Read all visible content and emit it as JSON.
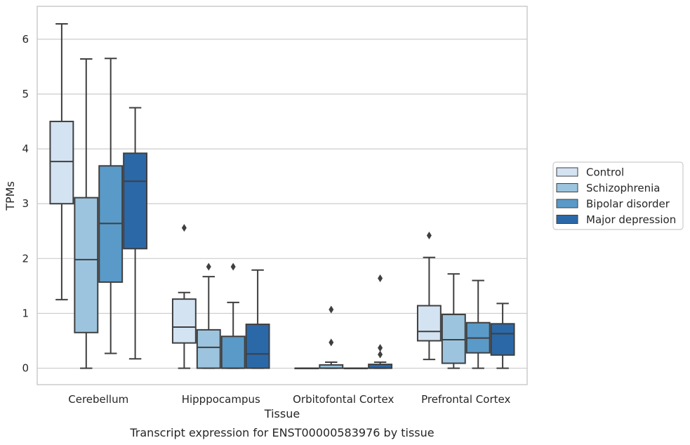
{
  "chart_data": {
    "type": "box",
    "xlabel": "Tissue",
    "ylabel": "TPMs",
    "caption": "Transcript expression for ENST00000583976 by tissue",
    "ylim": [
      -0.3,
      6.6
    ],
    "yticks": [
      0,
      1,
      2,
      3,
      4,
      5,
      6
    ],
    "grid": true,
    "legend_position": "right",
    "categories": [
      "Cerebellum",
      "Hipppocampus",
      "Orbitofontal Cortex",
      "Prefrontal Cortex"
    ],
    "series": [
      {
        "name": "Control",
        "color": "#d3e3f2",
        "boxes": [
          {
            "whislo": 1.25,
            "q1": 3.0,
            "med": 3.77,
            "q3": 4.5,
            "whishi": 6.28,
            "fliers": []
          },
          {
            "whislo": 0.0,
            "q1": 0.46,
            "med": 0.75,
            "q3": 1.26,
            "whishi": 1.38,
            "fliers": [
              2.56
            ]
          },
          {
            "whislo": 0.0,
            "q1": 0.0,
            "med": 0.0,
            "q3": 0.0,
            "whishi": 0.0,
            "fliers": []
          },
          {
            "whislo": 0.16,
            "q1": 0.5,
            "med": 0.67,
            "q3": 1.14,
            "whishi": 2.02,
            "fliers": [
              2.42
            ]
          }
        ]
      },
      {
        "name": "Schizophrenia",
        "color": "#9cc4de",
        "boxes": [
          {
            "whislo": 0.0,
            "q1": 0.65,
            "med": 1.98,
            "q3": 3.11,
            "whishi": 5.64,
            "fliers": []
          },
          {
            "whislo": 0.0,
            "q1": 0.0,
            "med": 0.38,
            "q3": 0.7,
            "whishi": 1.67,
            "fliers": [
              1.85
            ]
          },
          {
            "whislo": 0.0,
            "q1": 0.0,
            "med": 0.0,
            "q3": 0.06,
            "whishi": 0.11,
            "fliers": [
              0.47,
              1.07
            ]
          },
          {
            "whislo": 0.0,
            "q1": 0.09,
            "med": 0.52,
            "q3": 0.98,
            "whishi": 1.72,
            "fliers": []
          }
        ]
      },
      {
        "name": "Bipolar disorder",
        "color": "#5a9ac8",
        "boxes": [
          {
            "whislo": 0.27,
            "q1": 1.57,
            "med": 2.64,
            "q3": 3.69,
            "whishi": 5.65,
            "fliers": []
          },
          {
            "whislo": 0.0,
            "q1": 0.0,
            "med": 0.0,
            "q3": 0.58,
            "whishi": 1.2,
            "fliers": [
              1.85
            ]
          },
          {
            "whislo": 0.0,
            "q1": 0.0,
            "med": 0.0,
            "q3": 0.0,
            "whishi": 0.0,
            "fliers": []
          },
          {
            "whislo": 0.0,
            "q1": 0.28,
            "med": 0.55,
            "q3": 0.83,
            "whishi": 1.6,
            "fliers": []
          }
        ]
      },
      {
        "name": "Major depression",
        "color": "#2b68a8",
        "boxes": [
          {
            "whislo": 0.17,
            "q1": 2.18,
            "med": 3.41,
            "q3": 3.92,
            "whishi": 4.75,
            "fliers": []
          },
          {
            "whislo": 0.0,
            "q1": 0.0,
            "med": 0.26,
            "q3": 0.8,
            "whishi": 1.79,
            "fliers": []
          },
          {
            "whislo": 0.0,
            "q1": 0.0,
            "med": 0.0,
            "q3": 0.07,
            "whishi": 0.11,
            "fliers": [
              0.25,
              0.37,
              1.64
            ]
          },
          {
            "whislo": 0.0,
            "q1": 0.24,
            "med": 0.63,
            "q3": 0.81,
            "whishi": 1.18,
            "fliers": []
          }
        ]
      }
    ]
  }
}
